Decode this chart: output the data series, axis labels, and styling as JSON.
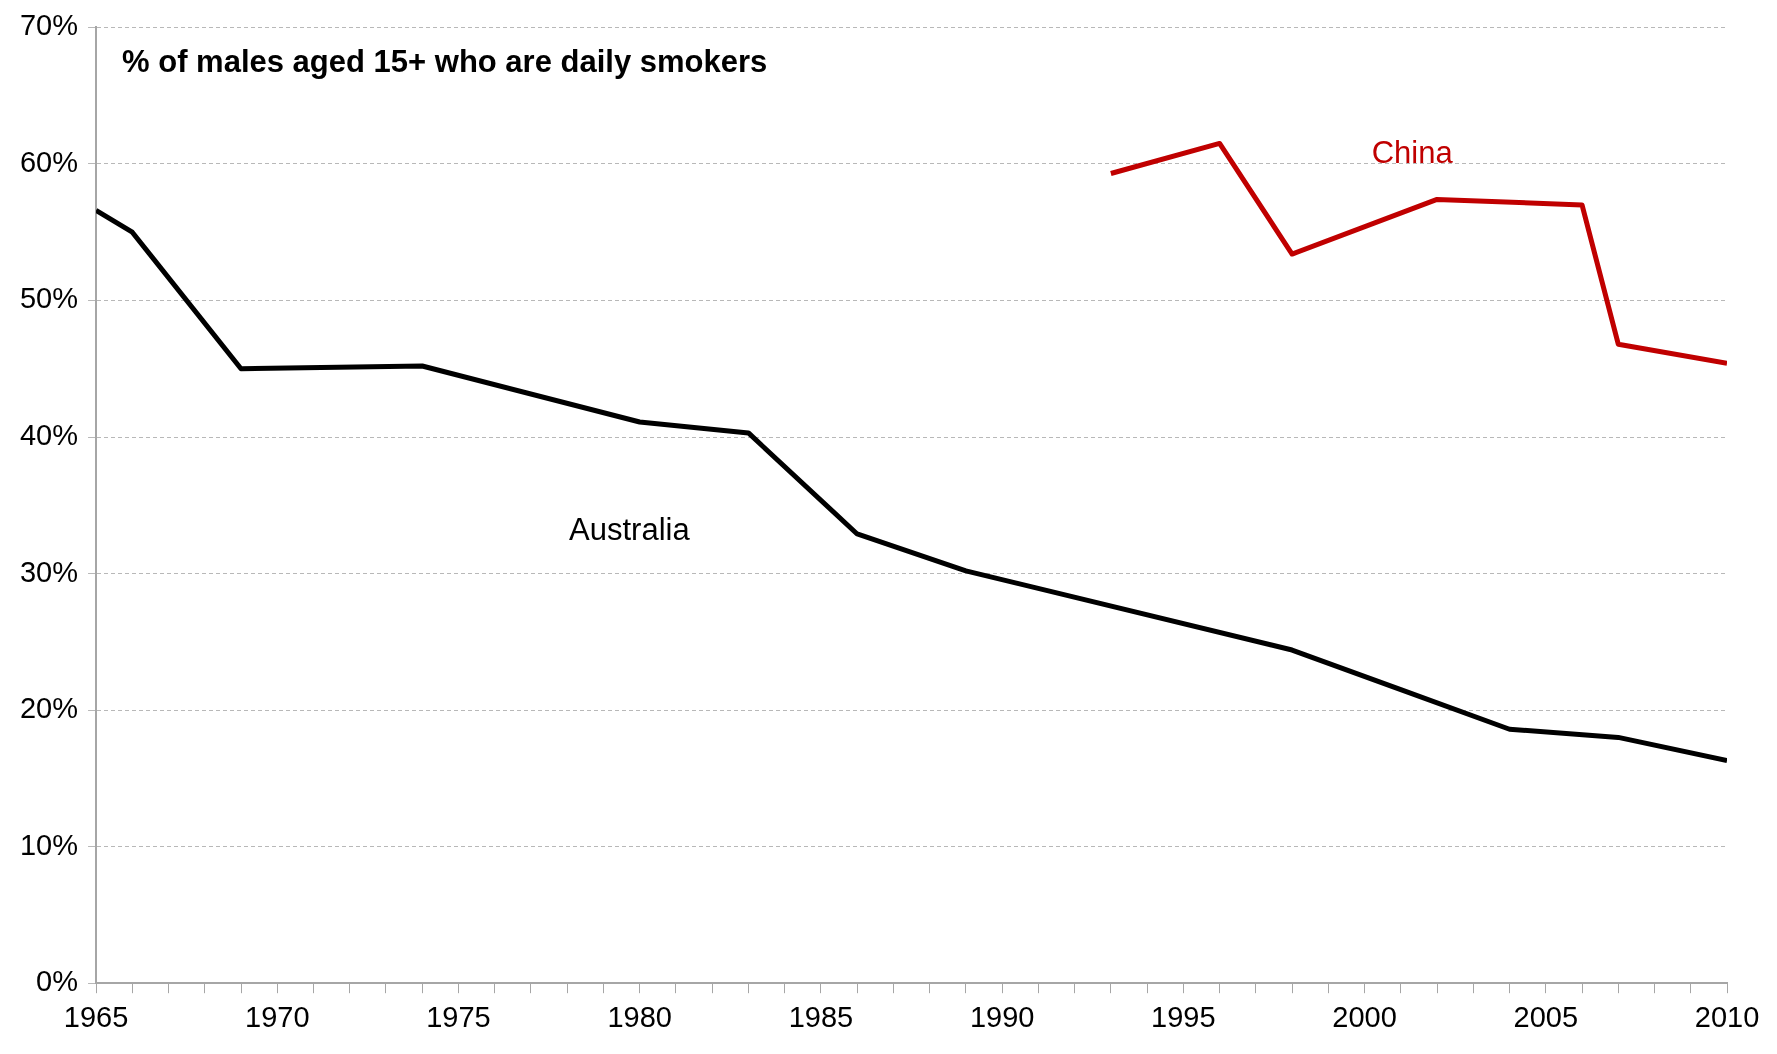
{
  "chart_data": {
    "type": "line",
    "title": "% of males aged 15+ who are daily smokers",
    "series": [
      {
        "name": "Australia",
        "color": "#000000",
        "x": [
          1965,
          1966,
          1969,
          1974,
          1980,
          1983,
          1986,
          1989,
          1998,
          2001,
          2004,
          2007,
          2010
        ],
        "values": [
          56.6,
          55.0,
          45.0,
          45.2,
          41.1,
          40.3,
          32.9,
          30.2,
          24.4,
          21.5,
          18.6,
          18.0,
          16.3
        ]
      },
      {
        "name": "China",
        "color": "#c00000",
        "x": [
          1993,
          1996,
          1998,
          2002,
          2006,
          2007,
          2010
        ],
        "values": [
          59.3,
          61.5,
          53.4,
          57.4,
          57.0,
          46.8,
          45.4
        ]
      }
    ],
    "xlim": [
      1965,
      2010
    ],
    "xticks": [
      1965,
      {
        "value": 1966,
        "label": null
      },
      {
        "value": 1967,
        "label": null
      },
      {
        "value": 1968,
        "label": null
      },
      {
        "value": 1969,
        "label": null
      },
      1970,
      {
        "value": 1971,
        "label": null
      },
      {
        "value": 1972,
        "label": null
      },
      {
        "value": 1973,
        "label": null
      },
      {
        "value": 1974,
        "label": null
      },
      1975,
      {
        "value": 1976,
        "label": null
      },
      {
        "value": 1977,
        "label": null
      },
      {
        "value": 1978,
        "label": null
      },
      {
        "value": 1979,
        "label": null
      },
      1980,
      {
        "value": 1981,
        "label": null
      },
      {
        "value": 1982,
        "label": null
      },
      {
        "value": 1983,
        "label": null
      },
      {
        "value": 1984,
        "label": null
      },
      1985,
      {
        "value": 1986,
        "label": null
      },
      {
        "value": 1987,
        "label": null
      },
      {
        "value": 1988,
        "label": null
      },
      {
        "value": 1989,
        "label": null
      },
      1990,
      {
        "value": 1991,
        "label": null
      },
      {
        "value": 1992,
        "label": null
      },
      {
        "value": 1993,
        "label": null
      },
      {
        "value": 1994,
        "label": null
      },
      1995,
      {
        "value": 1996,
        "label": null
      },
      {
        "value": 1997,
        "label": null
      },
      {
        "value": 1998,
        "label": null
      },
      {
        "value": 1999,
        "label": null
      },
      2000,
      {
        "value": 2001,
        "label": null
      },
      {
        "value": 2002,
        "label": null
      },
      {
        "value": 2003,
        "label": null
      },
      {
        "value": 2004,
        "label": null
      },
      2005,
      {
        "value": 2006,
        "label": null
      },
      {
        "value": 2007,
        "label": null
      },
      {
        "value": 2008,
        "label": null
      },
      {
        "value": 2009,
        "label": null
      },
      2010
    ],
    "ylim": [
      0,
      70
    ],
    "yticks": [
      {
        "value": 0,
        "label": "0%"
      },
      {
        "value": 10,
        "label": "10%"
      },
      {
        "value": 20,
        "label": "20%"
      },
      {
        "value": 30,
        "label": "30%"
      },
      {
        "value": 40,
        "label": "40%"
      },
      {
        "value": 50,
        "label": "50%"
      },
      {
        "value": 60,
        "label": "60%"
      },
      {
        "value": 70,
        "label": "70%"
      }
    ],
    "grid": "y",
    "legend": false,
    "marker": "none",
    "line_style": "solid"
  }
}
